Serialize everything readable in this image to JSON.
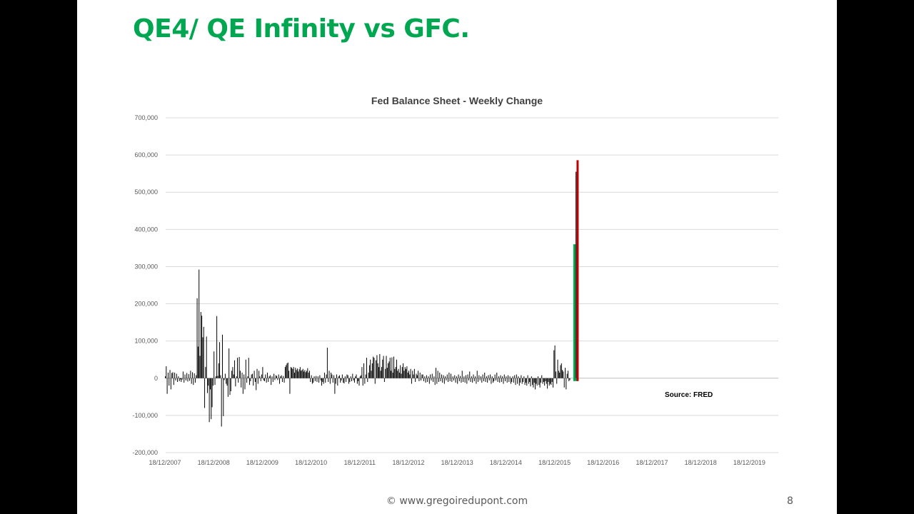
{
  "slide": {
    "title": "QE4/ QE Infinity vs GFC.",
    "footer": "© www.gregoiredupont.com",
    "page_number": "8"
  },
  "colors": {
    "title": "#00a650",
    "bars": "#000000",
    "gfc_highlight": "#00a650",
    "qe4_highlight": "#c00000"
  },
  "chart_data": {
    "type": "bar",
    "title": "Fed Balance Sheet - Weekly Change",
    "xlabel": "",
    "ylabel": "",
    "ylim": [
      -200000,
      700000
    ],
    "yticks": [
      {
        "value": 700000,
        "label": "700,000"
      },
      {
        "value": 600000,
        "label": "600,000"
      },
      {
        "value": 500000,
        "label": "500,000"
      },
      {
        "value": 400000,
        "label": "400,000"
      },
      {
        "value": 300000,
        "label": "300,000"
      },
      {
        "value": 200000,
        "label": "200,000"
      },
      {
        "value": 100000,
        "label": "100,000"
      },
      {
        "value": 0,
        "label": "0"
      },
      {
        "value": -100000,
        "label": "-100,000"
      },
      {
        "value": -200000,
        "label": "-200,000"
      }
    ],
    "xticks": [
      "18/12/2007",
      "18/12/2008",
      "18/12/2009",
      "18/12/2010",
      "18/12/2011",
      "18/12/2012",
      "18/12/2013",
      "18/12/2014",
      "18/12/2015",
      "18/12/2016",
      "18/12/2017",
      "18/12/2018",
      "18/12/2019"
    ],
    "grid": true,
    "annotation": "Source: FRED",
    "series": [
      {
        "start": "18/12/2007",
        "frequency": "weekly",
        "values": [
          5000,
          32000,
          -42000,
          15000,
          -20000,
          22000,
          -30000,
          14000,
          16000,
          -18000,
          15000,
          -6000,
          12000,
          -10000,
          5000,
          -8000,
          -3000,
          -10000,
          -4000,
          18000,
          -12000,
          10000,
          -6000,
          14000,
          -9000,
          11000,
          -7000,
          20000,
          -15000,
          16000,
          -18000,
          13000,
          -12000,
          8000,
          215000,
          85000,
          292000,
          60000,
          178000,
          168000,
          110000,
          138000,
          -80000,
          30000,
          112000,
          -40000,
          -20000,
          -118000,
          -30000,
          -110000,
          -78000,
          -20000,
          72000,
          -18000,
          5000,
          167000,
          6000,
          40000,
          97000,
          8000,
          -130000,
          117000,
          -102000,
          -5000,
          12000,
          -15000,
          -20000,
          -50000,
          80000,
          -45000,
          -35000,
          20000,
          30000,
          10000,
          48000,
          -22000,
          5000,
          55000,
          -12000,
          57000,
          20000,
          -25000,
          15000,
          -42000,
          10000,
          -30000,
          50000,
          -12000,
          5000,
          55000,
          -18000,
          -8000,
          10000,
          12000,
          -20000,
          20000,
          -10000,
          -32000,
          25000,
          -15000,
          20000,
          5000,
          -8000,
          10000,
          30000,
          -6000,
          -8000,
          10000,
          -12000,
          15000,
          -10000,
          5000,
          8000,
          -18000,
          5000,
          -10000,
          12000,
          -5000,
          8000,
          6000,
          -5000,
          10000,
          -15000,
          5000,
          8000,
          -10000,
          6000,
          -12000,
          30000,
          35000,
          40000,
          42000,
          20000,
          -42000,
          30000,
          28000,
          25000,
          30000,
          15000,
          28000,
          22000,
          26000,
          18000,
          24000,
          30000,
          20000,
          22000,
          25000,
          18000,
          22000,
          16000,
          20000,
          27000,
          15000,
          20000,
          -10000,
          8000,
          -15000,
          -12000,
          5000,
          -8000,
          6000,
          -10000,
          5000,
          -12000,
          8000,
          -6000,
          -20000,
          -10000,
          -15000,
          15000,
          -12000,
          10000,
          82000,
          -10000,
          20000,
          -15000,
          15000,
          10000,
          -12000,
          8000,
          -42000,
          -15000,
          10000,
          -20000,
          5000,
          8000,
          -12000,
          -6000,
          10000,
          -12000,
          -14000,
          5000,
          -10000,
          10000,
          8000,
          -15000,
          -10000,
          5000,
          -8000,
          12000,
          -6000,
          -12000,
          5000,
          10000,
          -15000,
          -8000,
          -20000,
          5000,
          8000,
          30000,
          -20000,
          40000,
          -15000,
          10000,
          55000,
          -10000,
          15000,
          35000,
          50000,
          20000,
          40000,
          58000,
          55000,
          -15000,
          48000,
          62000,
          40000,
          30000,
          65000,
          20000,
          30000,
          50000,
          60000,
          -10000,
          25000,
          60000,
          28000,
          40000,
          45000,
          55000,
          20000,
          56000,
          15000,
          58000,
          25000,
          30000,
          50000,
          20000,
          25000,
          15000,
          35000,
          12000,
          30000,
          40000,
          20000,
          30000,
          25000,
          32000,
          15000,
          20000,
          10000,
          25000,
          -15000,
          20000,
          10000,
          25000,
          -10000,
          12000,
          8000,
          20000,
          -8000,
          15000,
          -6000,
          10000,
          10000,
          -8000,
          5000,
          -12000,
          8000,
          -10000,
          5000,
          -15000,
          10000,
          -6000,
          12000,
          -10000,
          5000,
          -18000,
          28000,
          -15000,
          20000,
          -10000,
          15000,
          -8000,
          10000,
          -12000,
          8000,
          -15000,
          5000,
          -6000,
          10000,
          -10000,
          15000,
          -8000,
          12000,
          -10000,
          5000,
          -6000,
          8000,
          -12000,
          5000,
          -15000,
          10000,
          -8000,
          6000,
          -12000,
          20000,
          -10000,
          5000,
          -12000,
          8000,
          -15000,
          10000,
          -6000,
          18000,
          -10000,
          5000,
          -12000,
          10000,
          -8000,
          5000,
          -15000,
          20000,
          -10000,
          8000,
          -6000,
          5000,
          -12000,
          10000,
          -8000,
          15000,
          -10000,
          5000,
          -12000,
          8000,
          -6000,
          10000,
          -15000,
          5000,
          -12000,
          -8000,
          10000,
          -6000,
          15000,
          -10000,
          5000,
          -12000,
          8000,
          -10000,
          5000,
          -15000,
          10000,
          -8000,
          5000,
          -12000,
          8000,
          -10000,
          5000,
          -15000,
          -10000,
          5000,
          -12000,
          8000,
          -18000,
          10000,
          -15000,
          5000,
          -20000,
          -12000,
          8000,
          -15000,
          -10000,
          5000,
          -18000,
          -12000,
          -20000,
          8000,
          -15000,
          -10000,
          -22000,
          5000,
          -18000,
          -25000,
          -12000,
          -30000,
          -15000,
          -20000,
          5000,
          -18000,
          -25000,
          -12000,
          8000,
          -15000,
          -10000,
          -20000,
          -8000,
          -15000,
          -28000,
          -10000,
          -20000,
          -15000,
          -18000,
          -10000,
          -25000,
          75000,
          88000,
          18000,
          -15000,
          50000,
          20000,
          15000,
          35000,
          40000,
          22000,
          18000,
          -25000,
          28000,
          -30000,
          12000,
          20000,
          -8000,
          -5000
        ]
      }
    ],
    "highlights": [
      {
        "name": "QE4 (green)",
        "date_index_from_end": 1,
        "value": 360000
      },
      {
        "name": "QE4 peak (red)",
        "date_index_from_end": 0,
        "value": 586000
      }
    ]
  }
}
